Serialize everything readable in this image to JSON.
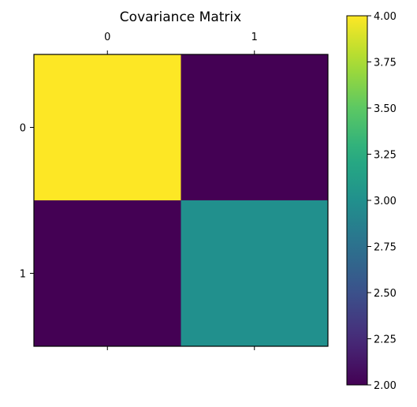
{
  "chart_data": {
    "type": "heatmap",
    "title": "Covariance Matrix",
    "x_tick_labels": [
      "0",
      "1"
    ],
    "y_tick_labels": [
      "0",
      "1"
    ],
    "matrix": [
      [
        4.0,
        2.0
      ],
      [
        2.0,
        3.0
      ]
    ],
    "colormap": "viridis",
    "color_range": [
      2.0,
      4.0
    ],
    "colorbar_ticks": [
      "2.00",
      "2.25",
      "2.50",
      "2.75",
      "3.00",
      "3.25",
      "3.50",
      "3.75",
      "4.00"
    ],
    "colorbar_tick_values": [
      2.0,
      2.25,
      2.5,
      2.75,
      3.0,
      3.25,
      3.5,
      3.75,
      4.0
    ],
    "x_ticks_position": "top and bottom",
    "grid": false
  }
}
